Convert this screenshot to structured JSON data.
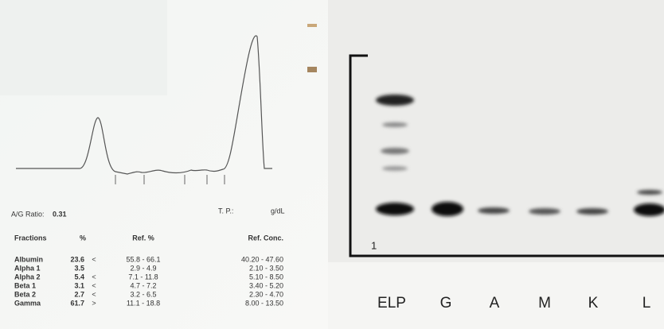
{
  "report": {
    "ag_ratio_label": "A/G Ratio:",
    "ag_ratio_value": "0.31",
    "tp_label": "T. P.:",
    "tp_unit": "g/dL",
    "table": {
      "headers": [
        "Fractions",
        "%",
        "Ref. %",
        "Ref. Conc."
      ],
      "rows": [
        {
          "fraction": "Albumin",
          "percent": "23.6",
          "flag": "<",
          "ref_percent": "55.8 - 66.1",
          "ref_conc": "40.20 - 47.60"
        },
        {
          "fraction": "Alpha 1",
          "percent": "3.5",
          "ref_percent": "2.9 - 4.9",
          "ref_conc": "2.10 - 3.50"
        },
        {
          "fraction": "Alpha 2",
          "percent": "5.4",
          "flag": "<",
          "ref_percent": "7.1 - 11.8",
          "ref_conc": "5.10 - 8.50"
        },
        {
          "fraction": "Beta 1",
          "percent": "3.1",
          "flag": "<",
          "ref_percent": "4.7 - 7.2",
          "ref_conc": "3.40 - 5.20"
        },
        {
          "fraction": "Beta 2",
          "percent": "2.7",
          "flag": "<",
          "ref_percent": "3.2 - 6.5",
          "ref_conc": "2.30 - 4.70"
        },
        {
          "fraction": "Gamma",
          "percent": "61.7",
          "flag": ">",
          "ref_percent": "11.1 - 18.8",
          "ref_conc": "8.00 - 13.50"
        }
      ]
    }
  },
  "gel": {
    "lane_number": "1",
    "lanes": [
      "ELP",
      "G",
      "A",
      "M",
      "K",
      "L"
    ]
  }
}
